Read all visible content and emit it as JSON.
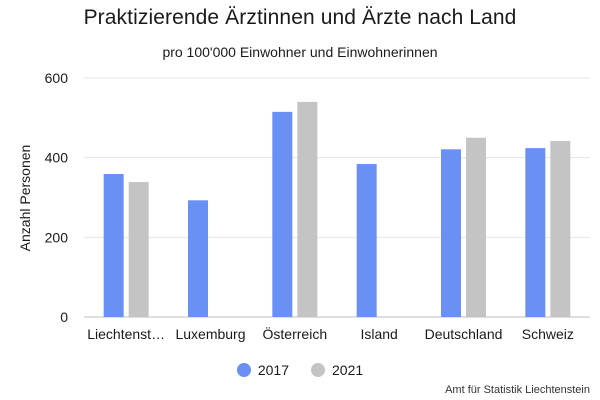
{
  "chart_data": {
    "type": "bar",
    "title": "Praktizierende Ärztinnen und Ärzte nach Land",
    "subtitle": "pro 100'000 Einwohner und Einwohnerinnen",
    "ylabel": "Anzahl Personen",
    "xlabel": "",
    "ylim": [
      0,
      600
    ],
    "yticks": [
      0,
      200,
      400,
      600
    ],
    "grid": true,
    "legend_position": "bottom",
    "categories": [
      "Liechtenst…",
      "Luxemburg",
      "Österreich",
      "Island",
      "Deutschland",
      "Schweiz"
    ],
    "series": [
      {
        "name": "2017",
        "color": "#6990f5",
        "values": [
          359,
          293,
          515,
          384,
          421,
          424
        ]
      },
      {
        "name": "2021",
        "color": "#c4c4c4",
        "values": [
          339,
          null,
          540,
          null,
          450,
          442
        ]
      }
    ]
  },
  "source": "Amt für Statistik Liechtenstein"
}
